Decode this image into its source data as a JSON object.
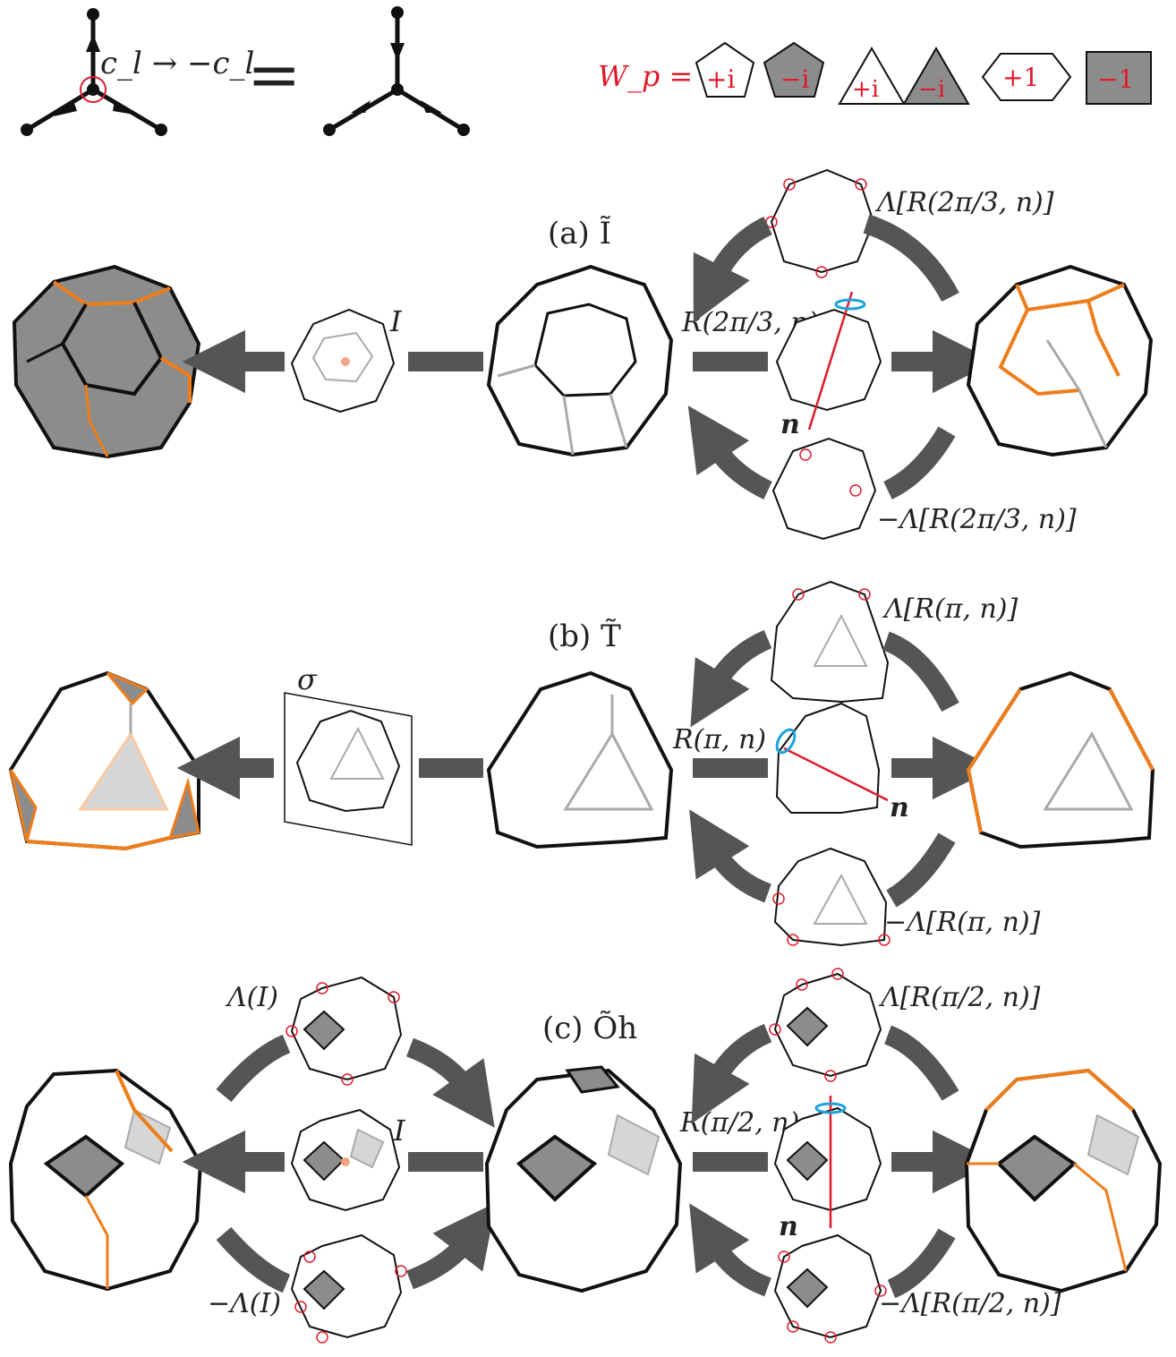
{
  "legend": {
    "vertex_label": "c_l → −c_l",
    "equals": "=",
    "wp_label": "W_p =",
    "plaquettes": [
      {
        "shape": "pentagon",
        "value": "+i",
        "filled": false
      },
      {
        "shape": "pentagon",
        "value": "−i",
        "filled": true
      },
      {
        "shape": "triangle",
        "value": "+i",
        "filled": false
      },
      {
        "shape": "triangle",
        "value": "−i",
        "filled": true
      },
      {
        "shape": "hexagon",
        "value": "+1",
        "filled": false
      },
      {
        "shape": "square",
        "value": "−1",
        "filled": true
      }
    ]
  },
  "panels": [
    {
      "id": "a",
      "title": "(a) Ĩ",
      "left_op": "I",
      "mid_op": "R(2π/3, n)",
      "top_op": "Λ[R(2π/3, n)]",
      "bottom_op": "−Λ[R(2π/3, n)]",
      "axis_label": "n"
    },
    {
      "id": "b",
      "title": "(b) T̃",
      "left_op": "σ",
      "mid_op": "R(π, n)",
      "top_op": "Λ[R(π, n)]",
      "bottom_op": "−Λ[R(π, n)]",
      "axis_label": "n"
    },
    {
      "id": "c",
      "title": "(c) Õh",
      "left_op": "I",
      "left_top_op": "Λ(I)",
      "left_bottom_op": "−Λ(I)",
      "mid_op": "R(π/2, n)",
      "top_op": "Λ[R(π/2, n)]",
      "bottom_op": "−Λ[R(π/2, n)]",
      "axis_label": "n"
    }
  ],
  "colors": {
    "edge": "#111111",
    "flipped_edge": "#ee7d1b",
    "back_edge": "#a8a8a8",
    "plaquette_dark": "#8c8c8c",
    "plaquette_light": "#cfcfcf",
    "arrow": "#555555",
    "marker": "#e01a2c",
    "rotation_ring": "#1aa3dd"
  }
}
